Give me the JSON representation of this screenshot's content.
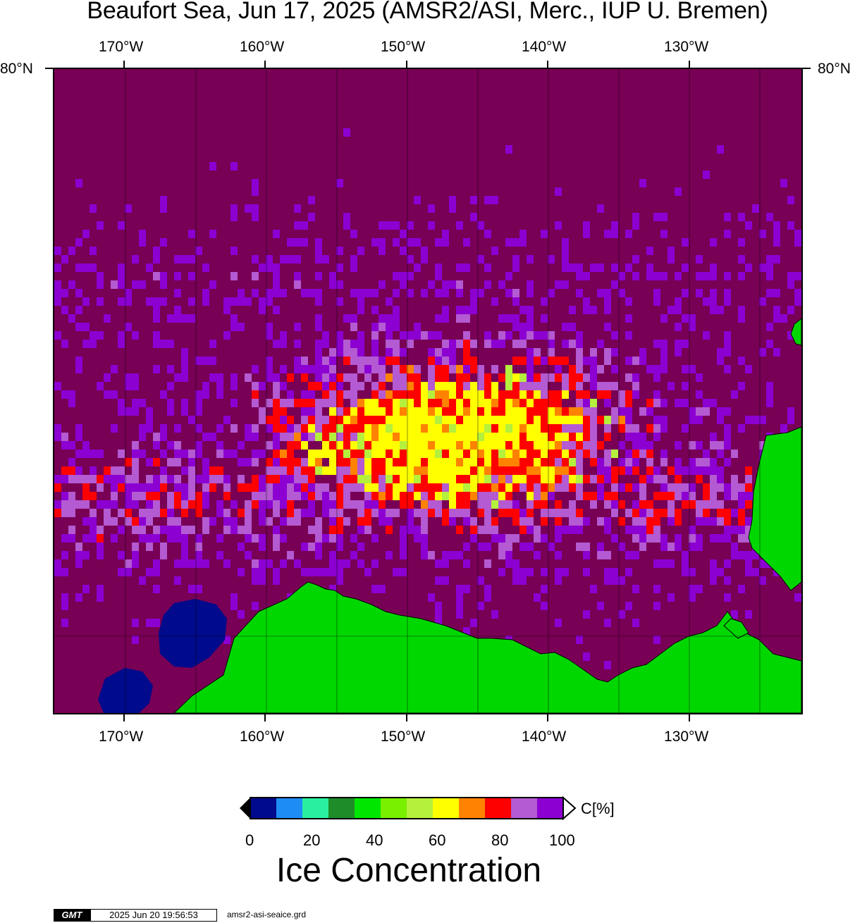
{
  "title": "Beaufort Sea, Jun 17, 2025 (AMSR2/ASI, Merc., IUP U. Bremen)",
  "lon_labels": [
    "170°W",
    "160°W",
    "150°W",
    "140°W",
    "130°W"
  ],
  "lat_label": "80°N",
  "colorbar": {
    "labels": [
      "0",
      "20",
      "40",
      "60",
      "80",
      "100"
    ],
    "unit": "C[%]",
    "title": "Ice Concentration",
    "colors": [
      "#000a8c",
      "#1e8cf5",
      "#28f0a0",
      "#1e8c28",
      "#00e600",
      "#78f000",
      "#b4f03c",
      "#ffff00",
      "#ff8200",
      "#ff0000",
      "#b45ad2",
      "#8c00d2"
    ]
  },
  "land_color": "#00d700",
  "ocean_color": "#780055",
  "footer": {
    "logo": "GMT",
    "timestamp": "2025 Jun 20 19:56:53",
    "filename": "amsr2-asi-seaice.grd"
  }
}
